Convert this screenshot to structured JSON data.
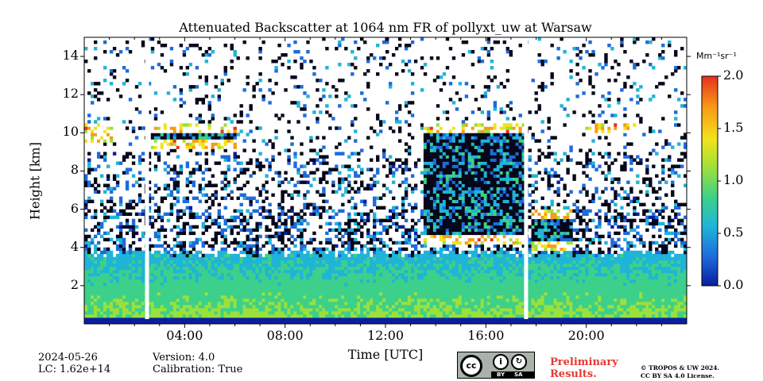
{
  "chart_data": {
    "type": "heatmap",
    "title": "Attenuated Backscatter at 1064 nm FR of pollyxt_uw at Warsaw",
    "xlabel": "Time [UTC]",
    "ylabel": "Height [km]",
    "xlim_hours": [
      0,
      24
    ],
    "ylim_km": [
      0,
      15
    ],
    "x_ticks": [
      {
        "hour": 4,
        "label": "04:00"
      },
      {
        "hour": 8,
        "label": "08:00"
      },
      {
        "hour": 12,
        "label": "12:00"
      },
      {
        "hour": 16,
        "label": "16:00"
      },
      {
        "hour": 20,
        "label": "20:00"
      }
    ],
    "y_ticks": [
      {
        "value": 2,
        "label": "2"
      },
      {
        "value": 4,
        "label": "4"
      },
      {
        "value": 6,
        "label": "6"
      },
      {
        "value": 8,
        "label": "8"
      },
      {
        "value": 10,
        "label": "10"
      },
      {
        "value": 12,
        "label": "12"
      },
      {
        "value": 14,
        "label": "14"
      }
    ],
    "colorbar": {
      "unit": "Mm⁻¹sr⁻¹",
      "range": [
        0.0,
        2.0
      ],
      "ticks": [
        {
          "value": 0.0,
          "label": "0.0"
        },
        {
          "value": 0.5,
          "label": "0.5"
        },
        {
          "value": 1.0,
          "label": "1.0"
        },
        {
          "value": 1.5,
          "label": "1.5"
        },
        {
          "value": 2.0,
          "label": "2.0"
        }
      ],
      "colormap": [
        "#0a1f9e",
        "#1e6bdc",
        "#1fb4d8",
        "#3dd08a",
        "#9be03c",
        "#f3e21a",
        "#f79b18",
        "#e8301c"
      ]
    },
    "data_gaps_hours": [
      2.5,
      17.6
    ],
    "features": [
      {
        "name": "boundary layer",
        "hours": [
          0,
          24
        ],
        "top_km": 3.5
      },
      {
        "name": "cloud",
        "hours": [
          0,
          1.2
        ],
        "base_km": 9.5,
        "top_km": 10.5
      },
      {
        "name": "cloud",
        "hours": [
          2.7,
          6.0
        ],
        "base_km": 9.2,
        "top_km": 10.5
      },
      {
        "name": "cloud",
        "hours": [
          13.5,
          17.5
        ],
        "base_km": 4.2,
        "top_km": 10.5
      },
      {
        "name": "cloud",
        "hours": [
          17.8,
          19.5
        ],
        "base_km": 3.8,
        "top_km": 6.0
      },
      {
        "name": "cloud",
        "hours": [
          20.0,
          22.0
        ],
        "base_km": 10.0,
        "top_km": 10.5
      }
    ]
  },
  "metadata": {
    "date": "2024-05-26",
    "lc": "LC: 1.62e+14",
    "version": "Version: 4.0",
    "calibration": "Calibration: True"
  },
  "footer": {
    "preliminary_line1": "Preliminary",
    "preliminary_line2": "Results.",
    "copyright_line1": "© TROPOS & UW 2024.",
    "copyright_line2": "CC BY SA 4.0 License.",
    "license_by": "BY",
    "license_sa": "SA"
  }
}
